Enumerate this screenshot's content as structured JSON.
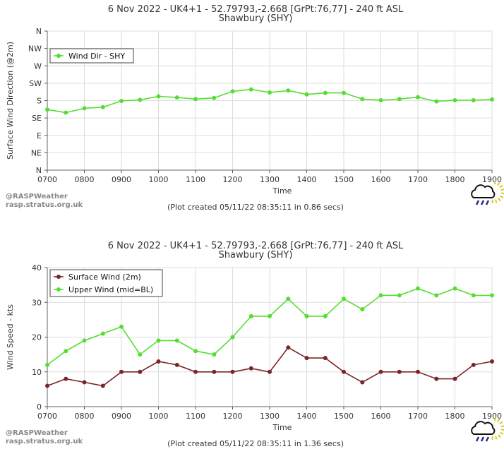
{
  "chart_data": [
    {
      "type": "line",
      "title": "6 Nov 2022 - UK4+1 - 52.79793,-2.668 [GrPt:76,77]  - 240 ft ASL",
      "subtitle": "Shawbury (SHY)",
      "xlabel": "Time",
      "ylabel": "Surface Wind Direction (@2m)",
      "x_ticks": [
        "0700",
        "0800",
        "0900",
        "1000",
        "1100",
        "1200",
        "1300",
        "1400",
        "1500",
        "1600",
        "1700",
        "1800",
        "1900"
      ],
      "x_range": [
        700,
        1900
      ],
      "y_ticks": [
        "N",
        "NE",
        "E",
        "SE",
        "S",
        "SW",
        "W",
        "NW",
        "N"
      ],
      "y_range": [
        0,
        360
      ],
      "grid": true,
      "legend_position": "top-left",
      "x": [
        700,
        750,
        800,
        850,
        900,
        950,
        1000,
        1050,
        1100,
        1150,
        1200,
        1250,
        1300,
        1350,
        1400,
        1450,
        1500,
        1550,
        1600,
        1650,
        1700,
        1750,
        1800,
        1850,
        1900
      ],
      "series": [
        {
          "name": "Wind Dir - SHY",
          "color": "#55dd33",
          "values": [
            157,
            149,
            160,
            163,
            179,
            182,
            191,
            188,
            184,
            187,
            204,
            209,
            201,
            206,
            196,
            200,
            200,
            184,
            181,
            184,
            189,
            178,
            181,
            181,
            183
          ]
        }
      ],
      "branding": [
        "@RASPWeather",
        "rasp.stratus.org.uk"
      ],
      "footer": "(Plot created 05/11/22 08:35:11 in 0.86 secs)"
    },
    {
      "type": "line",
      "title": "6 Nov 2022 - UK4+1 - 52.79793,-2.668 [GrPt:76,77]  - 240 ft ASL",
      "subtitle": "Shawbury (SHY)",
      "xlabel": "Time",
      "ylabel": "Wind Speed - kts",
      "x_ticks": [
        "0700",
        "0800",
        "0900",
        "1000",
        "1100",
        "1200",
        "1300",
        "1400",
        "1500",
        "1600",
        "1700",
        "1800",
        "1900"
      ],
      "x_range": [
        700,
        1900
      ],
      "y_ticks": [
        "0",
        "10",
        "20",
        "30",
        "40"
      ],
      "y_range": [
        0,
        40
      ],
      "grid": true,
      "legend_position": "top-left",
      "x": [
        700,
        750,
        800,
        850,
        900,
        950,
        1000,
        1050,
        1100,
        1150,
        1200,
        1250,
        1300,
        1350,
        1400,
        1450,
        1500,
        1550,
        1600,
        1650,
        1700,
        1750,
        1800,
        1850,
        1900
      ],
      "series": [
        {
          "name": "Surface Wind (2m)",
          "color": "#7a2626",
          "values": [
            6,
            8,
            7,
            6,
            10,
            10,
            13,
            12,
            10,
            10,
            10,
            11,
            10,
            17,
            14,
            14,
            10,
            7,
            10,
            10,
            10,
            8,
            8,
            12,
            13
          ]
        },
        {
          "name": "Upper Wind (mid=BL)",
          "color": "#55dd33",
          "values": [
            12,
            16,
            19,
            21,
            23,
            15,
            19,
            19,
            16,
            15,
            20,
            26,
            26,
            31,
            26,
            26,
            31,
            28,
            32,
            32,
            34,
            32,
            34,
            32,
            32
          ]
        }
      ],
      "branding": [
        "@RASPWeather",
        "rasp.stratus.org.uk"
      ],
      "footer": "(Plot created 05/11/22 08:35:11 in 1.36 secs)"
    }
  ]
}
